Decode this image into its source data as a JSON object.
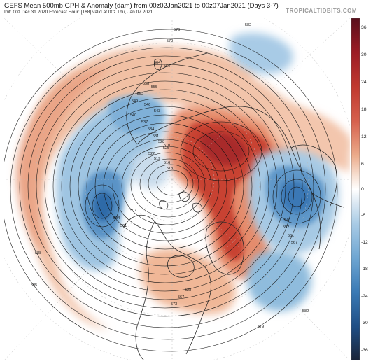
{
  "header": {
    "title": "GEFS Mean 500mb GPH & Anomaly (dam) from 00z02Jan2021 to 00z07Jan2021 (Days 3-7)",
    "subtitle": "Init: 00z Dec 31 2020   Forecast Hour: [168]   valid at 00z Thu, Jan 07 2021",
    "brand": "TROPICALTIDBITS.COM"
  },
  "colorbar": {
    "ticks": [
      "36",
      "30",
      "24",
      "18",
      "12",
      "6",
      "0",
      "-6",
      "-12",
      "-18",
      "-24",
      "-30",
      "-36"
    ],
    "colors": [
      "#6d1320",
      "#9c1c25",
      "#c0392f",
      "#d6604d",
      "#e79778",
      "#f3c2a8",
      "#ffffff",
      "#c6dbef",
      "#92c0df",
      "#5a9ccb",
      "#2e73b0",
      "#1d4f86",
      "#1a2f4f"
    ]
  },
  "map": {
    "contour_labels": [
      "582",
      "576",
      "570",
      "564",
      "561",
      "558",
      "555",
      "552",
      "549",
      "546",
      "543",
      "540",
      "537",
      "534",
      "531",
      "528",
      "525",
      "522",
      "519",
      "516",
      "513",
      "510",
      "507",
      "504",
      "501",
      "588",
      "585",
      "582",
      "579",
      "573",
      "567",
      "528",
      "540",
      "552",
      "561",
      "567"
    ],
    "anomaly_centers": [
      {
        "name": "siberian-ridge",
        "sign": "positive"
      },
      {
        "name": "north-atlantic-ridge",
        "sign": "positive"
      },
      {
        "name": "greenland-ridge",
        "sign": "positive"
      },
      {
        "name": "pacific-trough",
        "sign": "negative"
      },
      {
        "name": "european-trough",
        "sign": "negative"
      },
      {
        "name": "alaska-trough",
        "sign": "negative"
      },
      {
        "name": "atlantic-trough",
        "sign": "negative"
      }
    ]
  }
}
